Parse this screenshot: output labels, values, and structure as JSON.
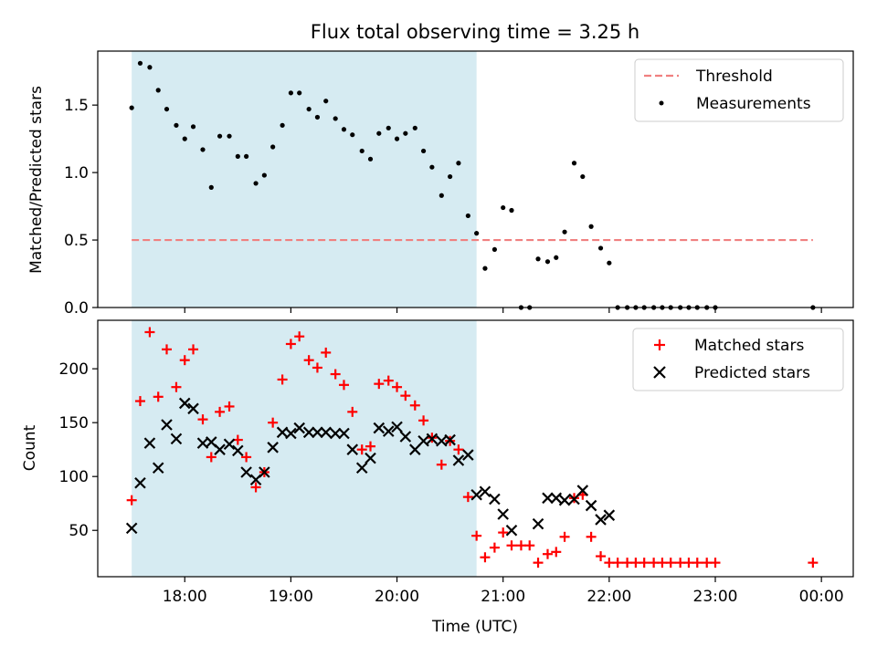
{
  "title": "Flux total observing time = 3.25 h",
  "chart_data": [
    {
      "type": "scatter",
      "panel": "top",
      "ylabel": "Matched/Predicted stars",
      "ylim": [
        0,
        1.9
      ],
      "yticks": [
        0.0,
        0.5,
        1.0,
        1.5
      ],
      "ytick_labels": [
        "0.0",
        "0.5",
        "1.0",
        "1.5"
      ],
      "xlim": [
        17.18,
        24.3
      ],
      "shaded_span": [
        17.5,
        20.75
      ],
      "shade_color": "#add8e6",
      "legend_position": "top-right",
      "threshold": {
        "name": "Threshold",
        "value": 0.5,
        "x_range": [
          17.5,
          23.92
        ],
        "color": "#f08080",
        "style": "dashed"
      },
      "series": [
        {
          "name": "Measurements",
          "color": "#000000",
          "marker": "dot",
          "x": [
            17.5,
            17.58,
            17.67,
            17.75,
            17.83,
            17.92,
            18.0,
            18.08,
            18.17,
            18.25,
            18.33,
            18.42,
            18.5,
            18.58,
            18.67,
            18.75,
            18.83,
            18.92,
            19.0,
            19.08,
            19.17,
            19.25,
            19.33,
            19.42,
            19.5,
            19.58,
            19.67,
            19.75,
            19.83,
            19.92,
            20.0,
            20.08,
            20.17,
            20.25,
            20.33,
            20.42,
            20.5,
            20.58,
            20.67,
            20.75,
            20.83,
            20.92,
            21.0,
            21.08,
            21.17,
            21.25,
            21.33,
            21.42,
            21.5,
            21.58,
            21.67,
            21.75,
            21.83,
            21.92,
            22.0,
            22.08,
            22.17,
            22.25,
            22.33,
            22.42,
            22.5,
            22.58,
            22.67,
            22.75,
            22.83,
            22.92,
            23.0,
            23.92
          ],
          "y": [
            1.48,
            1.81,
            1.78,
            1.61,
            1.47,
            1.35,
            1.25,
            1.34,
            1.17,
            0.89,
            1.27,
            1.27,
            1.12,
            1.12,
            0.92,
            0.98,
            1.19,
            1.35,
            1.59,
            1.59,
            1.47,
            1.41,
            1.53,
            1.4,
            1.32,
            1.28,
            1.16,
            1.1,
            1.29,
            1.33,
            1.25,
            1.29,
            1.33,
            1.16,
            1.04,
            0.83,
            0.97,
            1.07,
            0.68,
            0.55,
            0.29,
            0.43,
            0.74,
            0.72,
            0.0,
            0.0,
            0.36,
            0.34,
            0.37,
            0.56,
            1.07,
            0.97,
            0.6,
            0.44,
            0.33,
            0.0,
            0.0,
            0.0,
            0.0,
            0.0,
            0.0,
            0.0,
            0.0,
            0.0,
            0.0,
            0.0,
            0.0,
            0.0
          ]
        }
      ]
    },
    {
      "type": "scatter",
      "panel": "bottom",
      "xlabel": "Time (UTC)",
      "ylabel": "Count",
      "ylim": [
        7,
        245
      ],
      "yticks": [
        50,
        100,
        150,
        200
      ],
      "xlim": [
        17.18,
        24.3
      ],
      "xticks": [
        18,
        19,
        20,
        21,
        22,
        23,
        24
      ],
      "xtick_labels": [
        "18:00",
        "19:00",
        "20:00",
        "21:00",
        "22:00",
        "23:00",
        "00:00"
      ],
      "shaded_span": [
        17.5,
        20.75
      ],
      "shade_color": "#add8e6",
      "legend_position": "top-right",
      "series": [
        {
          "name": "Matched stars",
          "color": "#ff0000",
          "marker": "plus",
          "x": [
            17.5,
            17.58,
            17.67,
            17.75,
            17.83,
            17.92,
            18.0,
            18.08,
            18.17,
            18.25,
            18.33,
            18.42,
            18.5,
            18.58,
            18.67,
            18.75,
            18.83,
            18.92,
            19.0,
            19.08,
            19.17,
            19.25,
            19.33,
            19.42,
            19.5,
            19.58,
            19.67,
            19.75,
            19.83,
            19.92,
            20.0,
            20.08,
            20.17,
            20.25,
            20.33,
            20.42,
            20.5,
            20.58,
            20.67,
            20.75,
            20.83,
            20.92,
            21.0,
            21.08,
            21.17,
            21.25,
            21.33,
            21.42,
            21.5,
            21.58,
            21.67,
            21.75,
            21.83,
            21.92,
            22.0,
            22.08,
            22.17,
            22.25,
            22.33,
            22.42,
            22.5,
            22.58,
            22.67,
            22.75,
            22.83,
            22.92,
            23.0,
            23.92
          ],
          "y": [
            78,
            170,
            234,
            174,
            218,
            183,
            208,
            218,
            153,
            118,
            160,
            165,
            134,
            118,
            90,
            104,
            150,
            190,
            223,
            230,
            208,
            201,
            215,
            195,
            185,
            160,
            125,
            128,
            186,
            189,
            183,
            175,
            166,
            152,
            136,
            111,
            133,
            125,
            81,
            45,
            25,
            34,
            48,
            36,
            36,
            36,
            20,
            28,
            30,
            44,
            80,
            83,
            44,
            26,
            20,
            20,
            20,
            20,
            20,
            20,
            20,
            20,
            20,
            20,
            20,
            20,
            20,
            20
          ]
        },
        {
          "name": "Predicted stars",
          "color": "#000000",
          "marker": "x",
          "x": [
            17.5,
            17.58,
            17.67,
            17.75,
            17.83,
            17.92,
            18.0,
            18.08,
            18.17,
            18.25,
            18.33,
            18.42,
            18.5,
            18.58,
            18.67,
            18.75,
            18.83,
            18.92,
            19.0,
            19.08,
            19.17,
            19.25,
            19.33,
            19.42,
            19.5,
            19.58,
            19.67,
            19.75,
            19.83,
            19.92,
            20.0,
            20.08,
            20.17,
            20.25,
            20.33,
            20.42,
            20.5,
            20.58,
            20.67,
            20.75,
            20.83,
            20.92,
            21.0,
            21.08,
            21.33,
            21.42,
            21.5,
            21.58,
            21.67,
            21.75,
            21.83,
            21.92,
            22.0
          ],
          "y": [
            52,
            94,
            131,
            108,
            148,
            135,
            168,
            163,
            131,
            132,
            125,
            130,
            124,
            104,
            97,
            104,
            127,
            141,
            140,
            145,
            141,
            141,
            141,
            140,
            140,
            125,
            108,
            117,
            145,
            142,
            146,
            137,
            125,
            133,
            135,
            133,
            134,
            115,
            120,
            83,
            86,
            79,
            65,
            50,
            56,
            80,
            80,
            78,
            79,
            87,
            73,
            60,
            64
          ]
        }
      ]
    }
  ]
}
